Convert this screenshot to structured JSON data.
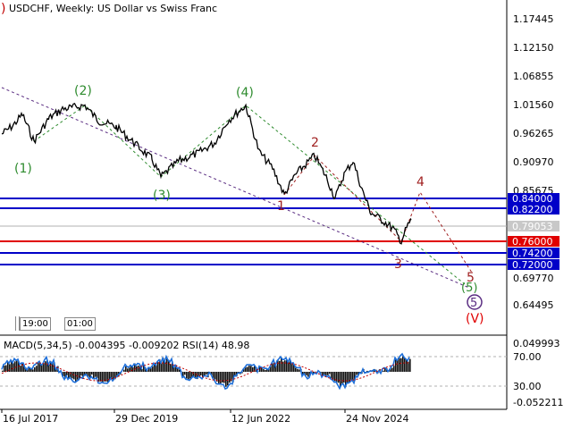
{
  "header": {
    "corner_mark": ")",
    "title": "USDCHF, Weekly:  US Dollar vs Swiss Franc"
  },
  "main_chart": {
    "price_axis_labels": [
      "1.17445",
      "1.12150",
      "1.06855",
      "1.01560",
      "0.96265",
      "0.90970",
      "0.85675",
      "0.79053",
      "0.69770",
      "0.64495"
    ],
    "level_labels": {
      "l0840": "0.84000",
      "l0822": "0.82200",
      "l0790": "0.79053",
      "l0760": "0.76000",
      "l0742": "0.74200",
      "l0720": "0.72000"
    },
    "wave_labels": {
      "w1": "(1)",
      "w2": "(2)",
      "w3": "(3)",
      "w4": "(4)",
      "w5": "(5)",
      "r1": "1",
      "r2": "2",
      "r3": "3",
      "r4": "4",
      "r5": "5",
      "c5": "5",
      "cv": "(V)"
    },
    "time_markers": {
      "t1": "19:00",
      "t2": "01:00"
    },
    "colors": {
      "blue_level": "#0000c8",
      "red_level": "#e00000",
      "green_wave": "#2e8b2e",
      "red_wave": "#a02020",
      "purple_wave": "#5a2d82"
    }
  },
  "indicator": {
    "title": "MACD(5,34,5) -0.004395 -0.009202 RSI(14) 48.98",
    "axis_labels": {
      "top": "0.049993",
      "l70": "70.00",
      "l30": "30.00",
      "bottom": "-0.052211"
    }
  },
  "time_axis": {
    "labels": [
      "16 Jul 2017",
      "29 Dec 2019",
      "12 Jun 2022",
      "24 Nov 2024"
    ]
  }
}
